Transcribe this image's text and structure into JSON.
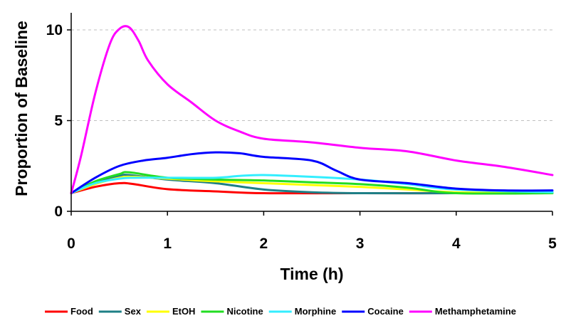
{
  "chart_data": {
    "type": "line",
    "title": "",
    "xlabel": "Time (h)",
    "ylabel": "Proportion of Baseline",
    "xlim": [
      0,
      5
    ],
    "ylim": [
      0,
      11.5
    ],
    "x_ticks": [
      "0",
      "1",
      "2",
      "3",
      "4",
      "5"
    ],
    "y_ticks": [
      "0",
      "5",
      "10"
    ],
    "grid": "horizontal dashed",
    "legend_position": "bottom",
    "series": [
      {
        "name": "Food",
        "color": "#ff0000",
        "points": [
          [
            0,
            1.0
          ],
          [
            0.25,
            1.35
          ],
          [
            0.5,
            1.55
          ],
          [
            0.65,
            1.5
          ],
          [
            1,
            1.22
          ],
          [
            1.5,
            1.1
          ],
          [
            2,
            1.0
          ],
          [
            3,
            1.0
          ],
          [
            4,
            1.0
          ],
          [
            5,
            1.05
          ]
        ]
      },
      {
        "name": "Sex",
        "color": "#1e7f86",
        "points": [
          [
            0,
            1.0
          ],
          [
            0.25,
            1.6
          ],
          [
            0.5,
            1.95
          ],
          [
            0.6,
            2.0
          ],
          [
            1,
            1.75
          ],
          [
            1.5,
            1.55
          ],
          [
            2,
            1.2
          ],
          [
            2.5,
            1.05
          ],
          [
            3,
            1.0
          ],
          [
            4,
            1.0
          ],
          [
            5,
            1.05
          ]
        ]
      },
      {
        "name": "EtOH",
        "color": "#ffff00",
        "points": [
          [
            0,
            1.0
          ],
          [
            0.25,
            1.5
          ],
          [
            0.5,
            1.85
          ],
          [
            0.65,
            1.9
          ],
          [
            1,
            1.8
          ],
          [
            1.5,
            1.65
          ],
          [
            2,
            1.55
          ],
          [
            2.5,
            1.45
          ],
          [
            3,
            1.35
          ],
          [
            3.5,
            1.2
          ],
          [
            4,
            1.05
          ],
          [
            5,
            1.0
          ]
        ]
      },
      {
        "name": "Nicotine",
        "color": "#22dd22",
        "points": [
          [
            0,
            1.0
          ],
          [
            0.25,
            1.65
          ],
          [
            0.5,
            2.05
          ],
          [
            0.6,
            2.15
          ],
          [
            1,
            1.85
          ],
          [
            1.5,
            1.75
          ],
          [
            2,
            1.7
          ],
          [
            2.5,
            1.6
          ],
          [
            3,
            1.5
          ],
          [
            3.5,
            1.3
          ],
          [
            4,
            1.0
          ],
          [
            5,
            1.0
          ]
        ]
      },
      {
        "name": "Morphine",
        "color": "#33eeff",
        "points": [
          [
            0,
            1.0
          ],
          [
            0.25,
            1.55
          ],
          [
            0.5,
            1.8
          ],
          [
            0.65,
            1.85
          ],
          [
            1,
            1.85
          ],
          [
            1.5,
            1.85
          ],
          [
            1.75,
            1.95
          ],
          [
            2,
            2.0
          ],
          [
            2.5,
            1.9
          ],
          [
            3,
            1.75
          ],
          [
            3.5,
            1.5
          ],
          [
            4,
            1.2
          ],
          [
            5,
            1.05
          ]
        ]
      },
      {
        "name": "Cocaine",
        "color": "#0000ff",
        "points": [
          [
            0,
            1.0
          ],
          [
            0.25,
            1.85
          ],
          [
            0.5,
            2.5
          ],
          [
            0.75,
            2.8
          ],
          [
            1,
            2.95
          ],
          [
            1.25,
            3.15
          ],
          [
            1.5,
            3.25
          ],
          [
            1.75,
            3.2
          ],
          [
            2,
            3.0
          ],
          [
            2.5,
            2.8
          ],
          [
            2.75,
            2.25
          ],
          [
            3,
            1.75
          ],
          [
            3.5,
            1.55
          ],
          [
            4,
            1.25
          ],
          [
            4.5,
            1.15
          ],
          [
            5,
            1.15
          ]
        ]
      },
      {
        "name": "Methamphetamine",
        "color": "#ff00ff",
        "points": [
          [
            0,
            1.0
          ],
          [
            0.1,
            3.0
          ],
          [
            0.25,
            6.5
          ],
          [
            0.4,
            9.2
          ],
          [
            0.5,
            10.05
          ],
          [
            0.6,
            10.15
          ],
          [
            0.7,
            9.4
          ],
          [
            0.8,
            8.3
          ],
          [
            1,
            7.0
          ],
          [
            1.25,
            6.0
          ],
          [
            1.5,
            5.0
          ],
          [
            1.75,
            4.4
          ],
          [
            2,
            4.0
          ],
          [
            2.5,
            3.8
          ],
          [
            3,
            3.5
          ],
          [
            3.5,
            3.3
          ],
          [
            4,
            2.8
          ],
          [
            4.5,
            2.45
          ],
          [
            5,
            2.0
          ]
        ]
      }
    ]
  }
}
